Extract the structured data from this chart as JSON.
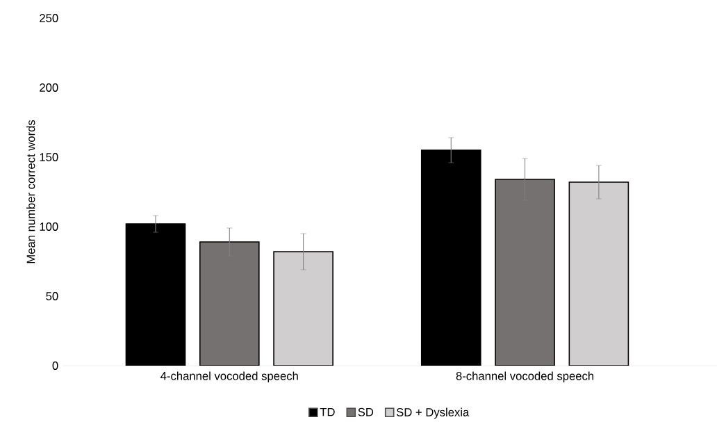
{
  "chart_data": {
    "type": "bar",
    "ylabel": "Mean number correct words",
    "categories": [
      "4-channel vocoded speech",
      "8-channel vocoded speech"
    ],
    "series": [
      {
        "name": "TD",
        "color": "#000000",
        "values": [
          102,
          155
        ],
        "errors": [
          6,
          9
        ]
      },
      {
        "name": "SD",
        "color": "#767171",
        "values": [
          89,
          134
        ],
        "errors": [
          10,
          15
        ]
      },
      {
        "name": "SD + Dyslexia",
        "color": "#d0cece",
        "values": [
          82,
          132
        ],
        "errors": [
          13,
          12
        ]
      }
    ],
    "ylim": [
      0,
      250
    ],
    "yticks": [
      0,
      50,
      100,
      150,
      200,
      250
    ],
    "grid": false,
    "legend": "bottom"
  }
}
